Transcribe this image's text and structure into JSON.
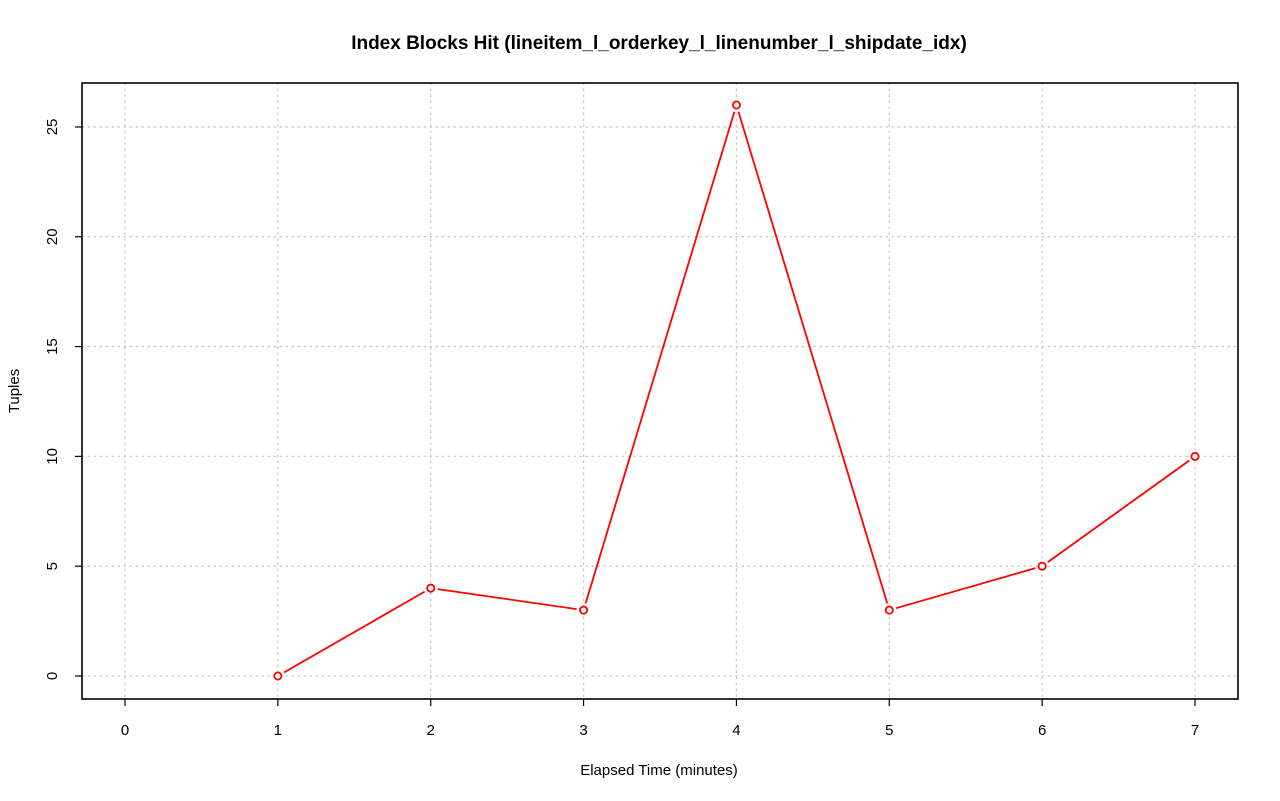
{
  "chart_data": {
    "type": "line",
    "title": "Index Blocks Hit (lineitem_l_orderkey_l_linenumber_l_shipdate_idx)",
    "xlabel": "Elapsed Time (minutes)",
    "ylabel": "Tuples",
    "x_ticks": [
      0,
      1,
      2,
      3,
      4,
      5,
      6,
      7
    ],
    "y_ticks": [
      0,
      5,
      10,
      15,
      20,
      25
    ],
    "xlim": [
      0,
      7
    ],
    "ylim": [
      0,
      26
    ],
    "grid": true,
    "series": [
      {
        "color": "#ff0000",
        "marker": "open-circle",
        "x": [
          1,
          2,
          3,
          4,
          5,
          6,
          7
        ],
        "y": [
          0,
          4,
          3,
          26,
          3,
          5,
          10
        ]
      }
    ]
  }
}
